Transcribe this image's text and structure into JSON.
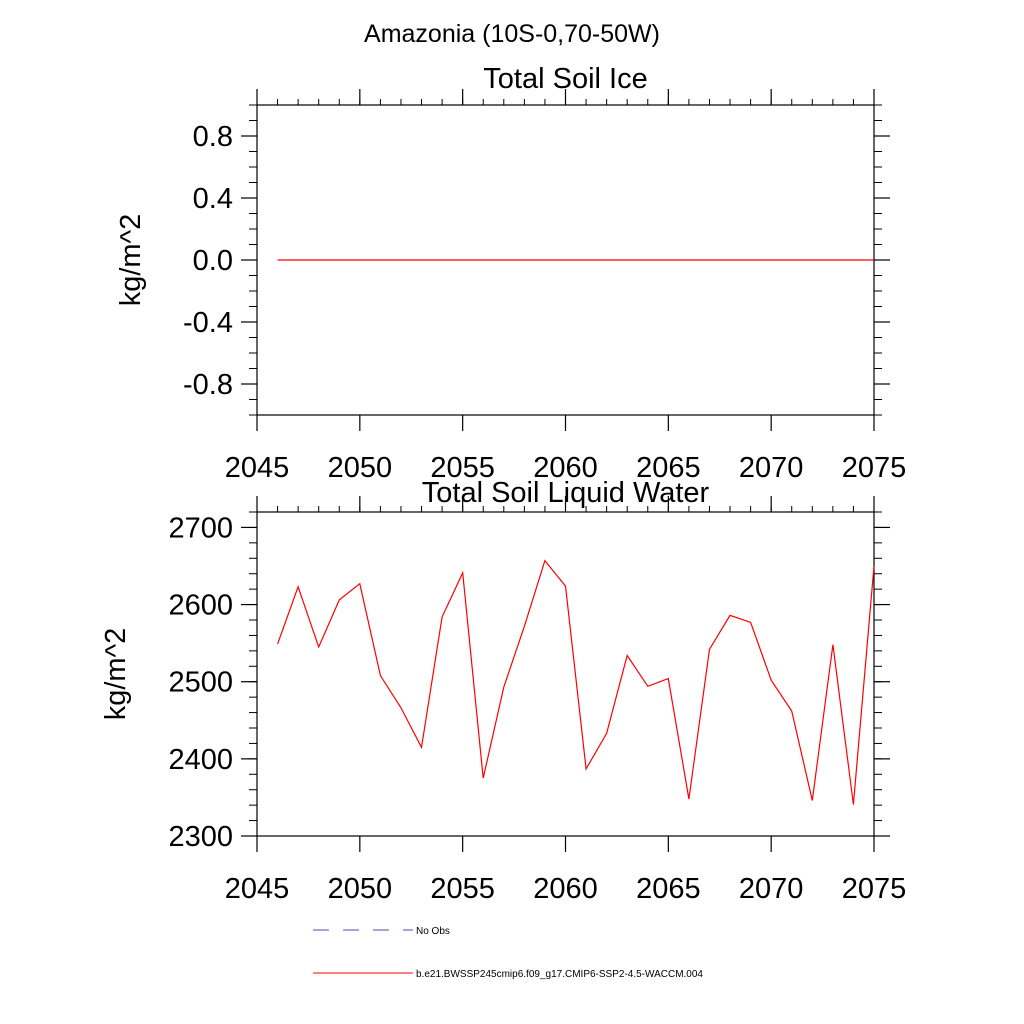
{
  "figure_title": "Amazonia (10S-0,70-50W)",
  "line_color": "#ff0000",
  "obs_color": "#4b4b9b",
  "legend": [
    {
      "label": "No Obs",
      "style": "dashed"
    },
    {
      "label": "b.e21.BWSSP245cmip6.f09_g17.CMIP6-SSP2-4.5-WACCM.004",
      "style": "solid"
    }
  ],
  "chart_data": [
    {
      "type": "line",
      "title": "Total Soil Ice",
      "xlabel": "",
      "ylabel": "kg/m^2",
      "xlim": [
        2045,
        2075
      ],
      "ylim": [
        -1.0,
        1.0
      ],
      "x_ticks": [
        "2045",
        "2050",
        "2055",
        "2060",
        "2065",
        "2070",
        "2075"
      ],
      "y_ticks": [
        "0.8",
        "0.4",
        "0.0",
        "-0.4",
        "-0.8"
      ],
      "y_tick_values": [
        0.8,
        0.4,
        0.0,
        -0.4,
        -0.8
      ],
      "y_minor_step": 0.1,
      "grid": false,
      "series": [
        {
          "name": "b.e21.BWSSP245cmip6.f09_g17.CMIP6-SSP2-4.5-WACCM.004",
          "x": [
            2046,
            2047,
            2048,
            2049,
            2050,
            2051,
            2052,
            2053,
            2054,
            2055,
            2056,
            2057,
            2058,
            2059,
            2060,
            2061,
            2062,
            2063,
            2064,
            2065,
            2066,
            2067,
            2068,
            2069,
            2070,
            2071,
            2072,
            2073,
            2074,
            2075
          ],
          "y": [
            0,
            0,
            0,
            0,
            0,
            0,
            0,
            0,
            0,
            0,
            0,
            0,
            0,
            0,
            0,
            0,
            0,
            0,
            0,
            0,
            0,
            0,
            0,
            0,
            0,
            0,
            0,
            0,
            0,
            0
          ]
        }
      ]
    },
    {
      "type": "line",
      "title": "Total Soil Liquid Water",
      "xlabel": "",
      "ylabel": "kg/m^2",
      "xlim": [
        2045,
        2075
      ],
      "ylim": [
        2300,
        2720
      ],
      "x_ticks": [
        "2045",
        "2050",
        "2055",
        "2060",
        "2065",
        "2070",
        "2075"
      ],
      "y_ticks": [
        "2700",
        "2600",
        "2500",
        "2400",
        "2300"
      ],
      "y_tick_values": [
        2700,
        2600,
        2500,
        2400,
        2300
      ],
      "y_minor_step": 20,
      "grid": false,
      "series": [
        {
          "name": "b.e21.BWSSP245cmip6.f09_g17.CMIP6-SSP2-4.5-WACCM.004",
          "x": [
            2046,
            2047,
            2048,
            2049,
            2050,
            2051,
            2052,
            2053,
            2054,
            2055,
            2056,
            2057,
            2058,
            2059,
            2060,
            2061,
            2062,
            2063,
            2064,
            2065,
            2066,
            2067,
            2068,
            2069,
            2070,
            2071,
            2072,
            2073,
            2074,
            2075
          ],
          "y": [
            2549,
            2623,
            2545,
            2606,
            2627,
            2508,
            2466,
            2415,
            2584,
            2641,
            2375,
            2493,
            2572,
            2657,
            2624,
            2387,
            2433,
            2534,
            2494,
            2504,
            2348,
            2542,
            2586,
            2577,
            2502,
            2462,
            2346,
            2548,
            2341,
            2650
          ]
        }
      ]
    }
  ]
}
